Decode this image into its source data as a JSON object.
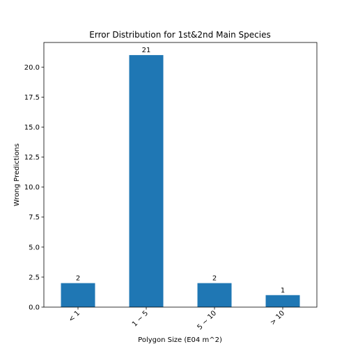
{
  "chart_data": {
    "type": "bar",
    "title": "Error Distribution for 1st&2nd Main Species",
    "xlabel": "Polygon Size (E04 m^2)",
    "ylabel": "Wrong Predictions",
    "categories": [
      "< 1",
      "1 ~ 5",
      "5 ~ 10",
      "> 10"
    ],
    "values": [
      2,
      21,
      2,
      1
    ],
    "value_labels": [
      "2",
      "21",
      "2",
      "1"
    ],
    "ylim": [
      0,
      22.05
    ],
    "yticks": [
      0.0,
      2.5,
      5.0,
      7.5,
      10.0,
      12.5,
      15.0,
      17.5,
      20.0
    ],
    "ytick_labels": [
      "0.0",
      "2.5",
      "5.0",
      "7.5",
      "10.0",
      "12.5",
      "15.0",
      "17.5",
      "20.0"
    ],
    "bar_color": "#1f77b4",
    "grid": false,
    "legend": "none"
  }
}
